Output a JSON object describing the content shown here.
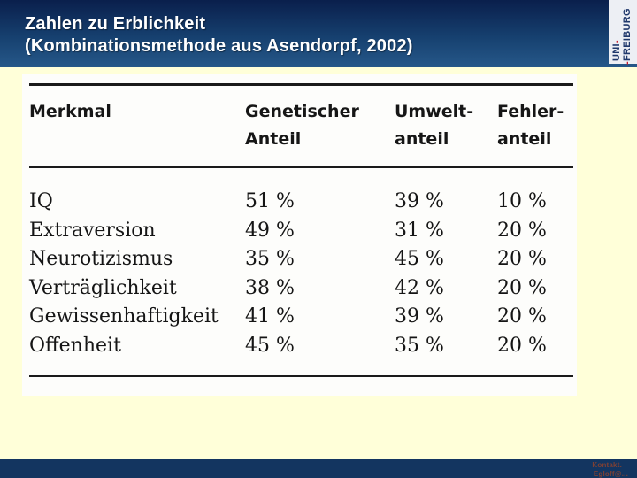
{
  "header": {
    "title_line1": "Zahlen zu Erblichkeit",
    "title_line2": "(Kombinationsmethode aus Asendorpf, 2002)"
  },
  "logo": {
    "line1": "UNI",
    "line2": "FREIBURG",
    "dash": "-"
  },
  "table": {
    "headers": [
      {
        "line1": "Merkmal",
        "line2": ""
      },
      {
        "line1": "Genetischer",
        "line2": "Anteil"
      },
      {
        "line1": "Umwelt-",
        "line2": "anteil"
      },
      {
        "line1": "Fehler-",
        "line2": "anteil"
      }
    ],
    "rows": [
      {
        "merkmal": "IQ",
        "genetisch": "51 %",
        "umwelt": "39 %",
        "fehler": "10 %"
      },
      {
        "merkmal": "Extraversion",
        "genetisch": "49 %",
        "umwelt": "31 %",
        "fehler": "20 %"
      },
      {
        "merkmal": "Neurotizismus",
        "genetisch": "35 %",
        "umwelt": "45 %",
        "fehler": "20 %"
      },
      {
        "merkmal": "Verträglichkeit",
        "genetisch": "38 %",
        "umwelt": "42 %",
        "fehler": "20 %"
      },
      {
        "merkmal": "Gewissenhaftigkeit",
        "genetisch": "41 %",
        "umwelt": "39 %",
        "fehler": "20 %"
      },
      {
        "merkmal": "Offenheit",
        "genetisch": "45 %",
        "umwelt": "35 %",
        "fehler": "20 %"
      }
    ]
  },
  "footer": {
    "line1": "Kontakt.",
    "line2": "Egloff@..."
  },
  "colors": {
    "header_gradient_top": "#0A1F4C",
    "header_gradient_bottom": "#265889",
    "slide_background": "#FFFFD9",
    "footer_bar": "#133560",
    "logo_background": "#EDEFF4",
    "logo_blue": "#20386B",
    "logo_red": "#C8202F",
    "kontakt_text": "#7E4034"
  },
  "chart_data": {
    "type": "table",
    "title": "Zahlen zu Erblichkeit (Kombinationsmethode aus Asendorpf, 2002)",
    "columns": [
      "Merkmal",
      "Genetischer Anteil",
      "Umweltanteil",
      "Fehleranteil"
    ],
    "rows": [
      [
        "IQ",
        "51 %",
        "39 %",
        "10 %"
      ],
      [
        "Extraversion",
        "49 %",
        "31 %",
        "20 %"
      ],
      [
        "Neurotizismus",
        "35 %",
        "45 %",
        "20 %"
      ],
      [
        "Verträglichkeit",
        "38 %",
        "42 %",
        "20 %"
      ],
      [
        "Gewissenhaftigkeit",
        "41 %",
        "39 %",
        "20 %"
      ],
      [
        "Offenheit",
        "45 %",
        "35 %",
        "20 %"
      ]
    ]
  }
}
